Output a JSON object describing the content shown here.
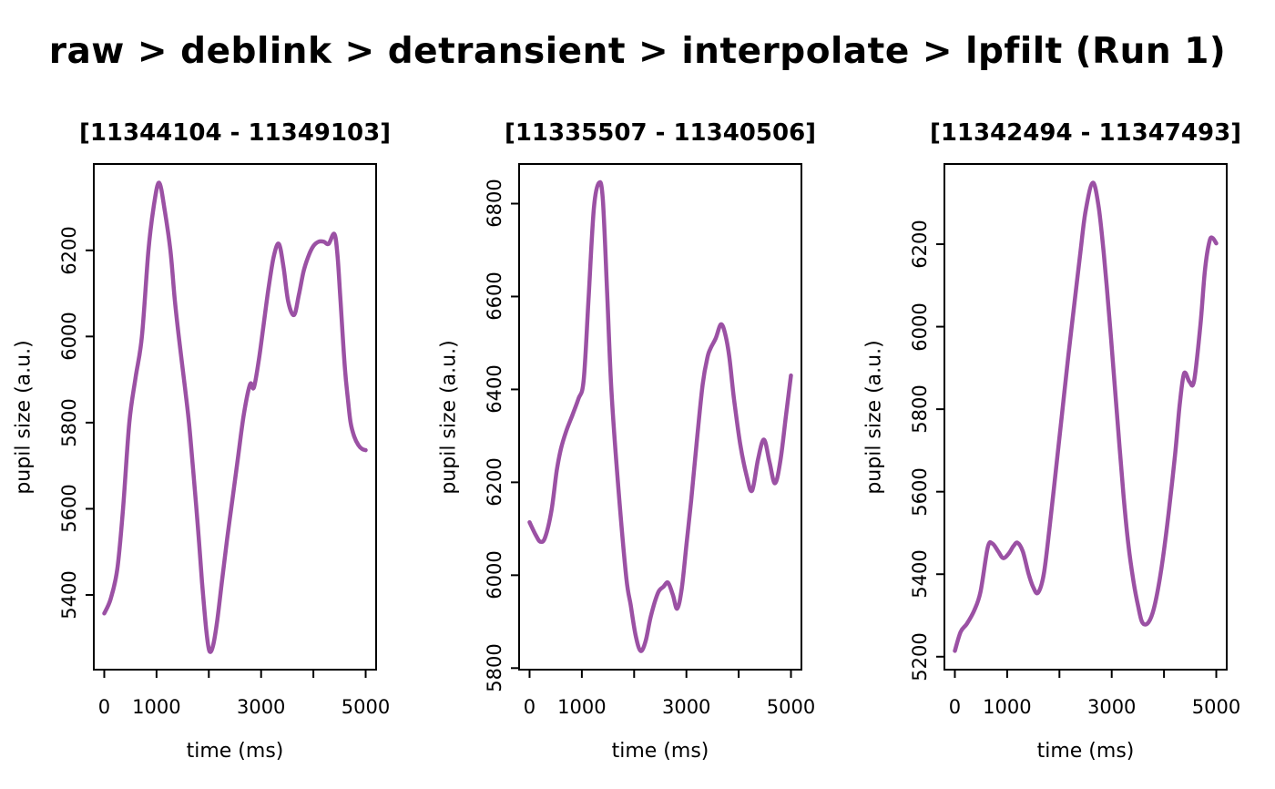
{
  "main_title": "raw > deblink > detransient > interpolate > lpfilt (Run 1)",
  "colors": {
    "line": "#9B51A4",
    "text": "#000000",
    "frame": "#000000"
  },
  "chart_data": [
    {
      "type": "line",
      "title": "[11344104 - 11349103]",
      "xlabel": "time (ms)",
      "ylabel": "pupil size (a.u.)",
      "x_ticks": {
        "values": [
          0,
          1000,
          2000,
          3000,
          4000,
          5000
        ],
        "labels": [
          "0",
          "1000",
          "",
          "3000",
          "",
          "5000"
        ]
      },
      "y_ticks": [
        5400,
        5600,
        5800,
        6000,
        6200
      ],
      "xlim": [
        -200,
        5200
      ],
      "grid": false,
      "points": [
        [
          0,
          5357
        ],
        [
          120,
          5390
        ],
        [
          250,
          5460
        ],
        [
          360,
          5600
        ],
        [
          480,
          5800
        ],
        [
          600,
          5905
        ],
        [
          720,
          6000
        ],
        [
          845,
          6200
        ],
        [
          950,
          6305
        ],
        [
          1050,
          6357
        ],
        [
          1160,
          6290
        ],
        [
          1265,
          6200
        ],
        [
          1345,
          6090
        ],
        [
          1425,
          6000
        ],
        [
          1545,
          5880
        ],
        [
          1620,
          5800
        ],
        [
          1700,
          5690
        ],
        [
          1790,
          5560
        ],
        [
          1870,
          5430
        ],
        [
          1950,
          5320
        ],
        [
          2010,
          5270
        ],
        [
          2080,
          5282
        ],
        [
          2160,
          5340
        ],
        [
          2250,
          5430
        ],
        [
          2350,
          5530
        ],
        [
          2450,
          5620
        ],
        [
          2560,
          5720
        ],
        [
          2670,
          5820
        ],
        [
          2790,
          5889
        ],
        [
          2860,
          5881
        ],
        [
          2950,
          5940
        ],
        [
          3040,
          6020
        ],
        [
          3140,
          6110
        ],
        [
          3240,
          6185
        ],
        [
          3340,
          6215
        ],
        [
          3430,
          6160
        ],
        [
          3520,
          6080
        ],
        [
          3630,
          6050
        ],
        [
          3720,
          6095
        ],
        [
          3810,
          6150
        ],
        [
          3900,
          6185
        ],
        [
          4000,
          6210
        ],
        [
          4100,
          6220
        ],
        [
          4200,
          6220
        ],
        [
          4290,
          6215
        ],
        [
          4400,
          6238
        ],
        [
          4460,
          6190
        ],
        [
          4520,
          6080
        ],
        [
          4600,
          5930
        ],
        [
          4660,
          5855
        ],
        [
          4712,
          5800
        ],
        [
          4780,
          5768
        ],
        [
          4860,
          5748
        ],
        [
          4930,
          5739
        ],
        [
          5000,
          5736
        ]
      ]
    },
    {
      "type": "line",
      "title": "[11335507 - 11340506]",
      "xlabel": "time (ms)",
      "ylabel": "pupil size (a.u.)",
      "x_ticks": {
        "values": [
          0,
          1000,
          2000,
          3000,
          4000,
          5000
        ],
        "labels": [
          "0",
          "1000",
          "",
          "3000",
          "",
          "5000"
        ]
      },
      "y_ticks": [
        5800,
        6000,
        6200,
        6400,
        6600,
        6800
      ],
      "xlim": [
        -200,
        5200
      ],
      "grid": false,
      "points": [
        [
          0,
          6114
        ],
        [
          120,
          6086
        ],
        [
          210,
          6072
        ],
        [
          300,
          6082
        ],
        [
          420,
          6140
        ],
        [
          520,
          6225
        ],
        [
          600,
          6272
        ],
        [
          700,
          6310
        ],
        [
          820,
          6345
        ],
        [
          935,
          6380
        ],
        [
          1035,
          6420
        ],
        [
          1130,
          6600
        ],
        [
          1230,
          6790
        ],
        [
          1330,
          6845
        ],
        [
          1400,
          6810
        ],
        [
          1480,
          6620
        ],
        [
          1565,
          6400
        ],
        [
          1690,
          6200
        ],
        [
          1845,
          6000
        ],
        [
          1935,
          5935
        ],
        [
          2030,
          5870
        ],
        [
          2124,
          5837
        ],
        [
          2220,
          5858
        ],
        [
          2320,
          5912
        ],
        [
          2456,
          5962
        ],
        [
          2560,
          5975
        ],
        [
          2648,
          5984
        ],
        [
          2740,
          5958
        ],
        [
          2823,
          5928
        ],
        [
          2910,
          5970
        ],
        [
          3000,
          6065
        ],
        [
          3090,
          6160
        ],
        [
          3200,
          6290
        ],
        [
          3310,
          6410
        ],
        [
          3400,
          6468
        ],
        [
          3460,
          6488
        ],
        [
          3560,
          6510
        ],
        [
          3660,
          6540
        ],
        [
          3740,
          6520
        ],
        [
          3820,
          6470
        ],
        [
          3910,
          6380
        ],
        [
          4030,
          6282
        ],
        [
          4150,
          6215
        ],
        [
          4256,
          6182
        ],
        [
          4370,
          6250
        ],
        [
          4484,
          6292
        ],
        [
          4590,
          6243
        ],
        [
          4694,
          6198
        ],
        [
          4800,
          6248
        ],
        [
          4900,
          6340
        ],
        [
          5000,
          6430
        ]
      ]
    },
    {
      "type": "line",
      "title": "[11342494 - 11347493]",
      "xlabel": "time (ms)",
      "ylabel": "pupil size (a.u.)",
      "x_ticks": {
        "values": [
          0,
          1000,
          2000,
          3000,
          4000,
          5000
        ],
        "labels": [
          "0",
          "1000",
          "",
          "3000",
          "",
          "5000"
        ]
      },
      "y_ticks": [
        5200,
        5400,
        5600,
        5800,
        6000,
        6200
      ],
      "xlim": [
        -200,
        5200
      ],
      "grid": false,
      "points": [
        [
          0,
          5214
        ],
        [
          110,
          5260
        ],
        [
          230,
          5280
        ],
        [
          370,
          5312
        ],
        [
          490,
          5357
        ],
        [
          630,
          5465
        ],
        [
          720,
          5474
        ],
        [
          830,
          5455
        ],
        [
          925,
          5439
        ],
        [
          1030,
          5450
        ],
        [
          1120,
          5468
        ],
        [
          1200,
          5476
        ],
        [
          1300,
          5455
        ],
        [
          1410,
          5401
        ],
        [
          1500,
          5368
        ],
        [
          1590,
          5355
        ],
        [
          1700,
          5400
        ],
        [
          1810,
          5512
        ],
        [
          1930,
          5650
        ],
        [
          2050,
          5790
        ],
        [
          2170,
          5930
        ],
        [
          2280,
          6050
        ],
        [
          2400,
          6180
        ],
        [
          2500,
          6280
        ],
        [
          2638,
          6349
        ],
        [
          2750,
          6290
        ],
        [
          2846,
          6180
        ],
        [
          2950,
          6030
        ],
        [
          3032,
          5900
        ],
        [
          3130,
          5740
        ],
        [
          3226,
          5590
        ],
        [
          3320,
          5470
        ],
        [
          3420,
          5380
        ],
        [
          3510,
          5320
        ],
        [
          3581,
          5284
        ],
        [
          3680,
          5280
        ],
        [
          3780,
          5305
        ],
        [
          3880,
          5360
        ],
        [
          3980,
          5440
        ],
        [
          4090,
          5550
        ],
        [
          4212,
          5690
        ],
        [
          4300,
          5810
        ],
        [
          4385,
          5887
        ],
        [
          4489,
          5866
        ],
        [
          4576,
          5869
        ],
        [
          4697,
          6004
        ],
        [
          4783,
          6137
        ],
        [
          4870,
          6207
        ],
        [
          4930,
          6215
        ],
        [
          5000,
          6202
        ]
      ]
    }
  ]
}
